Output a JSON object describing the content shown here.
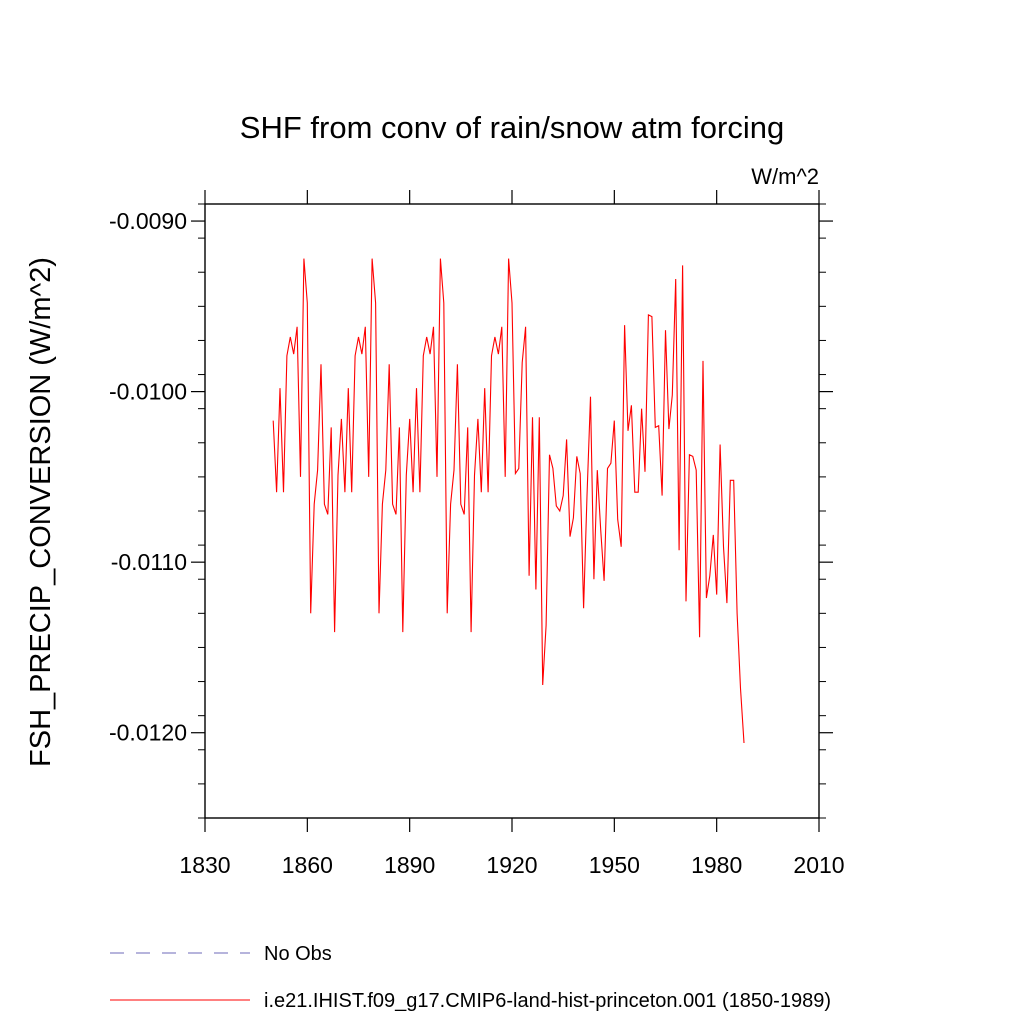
{
  "chart_data": {
    "type": "line",
    "title": "SHF from conv of rain/snow atm forcing",
    "units": "W/m^2",
    "ylabel": "FSH_PRECIP_CONVERSION  (W/m^2)",
    "xlabel": "",
    "xlim": [
      1830,
      2010
    ],
    "ylim": [
      -0.0125,
      -0.0089
    ],
    "x_ticks": [
      1830,
      1860,
      1890,
      1920,
      1950,
      1980,
      2010
    ],
    "x_tick_labels": [
      "1830",
      "1860",
      "1890",
      "1920",
      "1950",
      "1980",
      "2010"
    ],
    "y_ticks": [
      -0.009,
      -0.01,
      -0.011,
      -0.012
    ],
    "y_tick_labels": [
      "-0.0090",
      "-0.0100",
      "-0.0110",
      "-0.0120"
    ],
    "grid": false,
    "legend_position": "bottom",
    "legend": [
      {
        "label": "No Obs",
        "style": "dashed",
        "color": "#8a86c8"
      },
      {
        "label": "i.e21.IHIST.f09_g17.CMIP6-land-hist-princeton.001 (1850-1989)",
        "style": "solid",
        "color": "#ff0000"
      }
    ],
    "series": [
      {
        "name": "i.e21.IHIST.f09_g17.CMIP6-land-hist-princeton.001 (1850-1989)",
        "color": "#ff0000",
        "x": [
          1850,
          1851,
          1852,
          1853,
          1854,
          1855,
          1856,
          1857,
          1858,
          1859,
          1860,
          1861,
          1862,
          1863,
          1864,
          1865,
          1866,
          1867,
          1868,
          1869,
          1870,
          1871,
          1872,
          1873,
          1874,
          1875,
          1876,
          1877,
          1878,
          1879,
          1880,
          1881,
          1882,
          1883,
          1884,
          1885,
          1886,
          1887,
          1888,
          1889,
          1890,
          1891,
          1892,
          1893,
          1894,
          1895,
          1896,
          1897,
          1898,
          1899,
          1900,
          1901,
          1902,
          1903,
          1904,
          1905,
          1906,
          1907,
          1908,
          1909,
          1910,
          1911,
          1912,
          1913,
          1914,
          1915,
          1916,
          1917,
          1918,
          1919,
          1920,
          1921,
          1922,
          1923,
          1924,
          1925,
          1926,
          1927,
          1928,
          1929,
          1930,
          1931,
          1932,
          1933,
          1934,
          1935,
          1936,
          1937,
          1938,
          1939,
          1940,
          1941,
          1942,
          1943,
          1944,
          1945,
          1946,
          1947,
          1948,
          1949,
          1950,
          1951,
          1952,
          1953,
          1954,
          1955,
          1956,
          1957,
          1958,
          1959,
          1960,
          1961,
          1962,
          1963,
          1964,
          1965,
          1966,
          1967,
          1968,
          1969,
          1970,
          1971,
          1972,
          1973,
          1974,
          1975,
          1976,
          1977,
          1978,
          1979,
          1980,
          1981,
          1982,
          1983,
          1984,
          1985,
          1986,
          1987,
          1988,
          1989
        ],
        "y": [
          -0.01017,
          -0.01059,
          -0.00998,
          -0.01059,
          -0.00979,
          -0.00968,
          -0.00978,
          -0.00962,
          -0.0105,
          -0.00922,
          -0.00948,
          -0.0113,
          -0.01066,
          -0.01046,
          -0.00984,
          -0.01066,
          -0.01072,
          -0.01021,
          -0.01141,
          -0.01049,
          -0.01016,
          -0.01059,
          -0.00998,
          -0.01059,
          -0.00979,
          -0.00968,
          -0.00978,
          -0.00962,
          -0.0105,
          -0.00922,
          -0.00948,
          -0.0113,
          -0.01066,
          -0.01046,
          -0.00984,
          -0.01066,
          -0.01072,
          -0.01021,
          -0.01141,
          -0.01049,
          -0.01016,
          -0.01059,
          -0.00998,
          -0.01059,
          -0.00979,
          -0.00968,
          -0.00978,
          -0.00962,
          -0.0105,
          -0.00922,
          -0.00948,
          -0.0113,
          -0.01066,
          -0.01046,
          -0.00984,
          -0.01066,
          -0.01072,
          -0.01021,
          -0.01141,
          -0.01049,
          -0.01016,
          -0.01059,
          -0.00998,
          -0.01059,
          -0.00979,
          -0.00968,
          -0.00978,
          -0.00962,
          -0.0105,
          -0.00922,
          -0.00948,
          -0.01048,
          -0.01045,
          -0.00983,
          -0.00962,
          -0.01108,
          -0.01015,
          -0.01116,
          -0.01015,
          -0.01172,
          -0.01137,
          -0.01037,
          -0.01045,
          -0.01067,
          -0.0107,
          -0.01061,
          -0.01028,
          -0.01085,
          -0.01074,
          -0.01038,
          -0.01048,
          -0.01127,
          -0.01061,
          -0.01003,
          -0.0111,
          -0.01046,
          -0.01081,
          -0.01111,
          -0.01045,
          -0.01042,
          -0.01017,
          -0.01075,
          -0.01091,
          -0.00961,
          -0.01023,
          -0.01008,
          -0.01059,
          -0.01059,
          -0.0101,
          -0.01047,
          -0.00955,
          -0.00956,
          -0.01021,
          -0.0102,
          -0.01061,
          -0.00964,
          -0.01022,
          -0.01002,
          -0.00934,
          -0.01093,
          -0.00926,
          -0.01123,
          -0.01037,
          -0.01038,
          -0.01046,
          -0.01144,
          -0.00982,
          -0.01121,
          -0.01108,
          -0.01084,
          -0.01119,
          -0.01031,
          -0.01091,
          -0.01124,
          -0.01052,
          -0.01052,
          -0.0113,
          -0.01174,
          -0.01206,
          null
        ]
      }
    ]
  }
}
